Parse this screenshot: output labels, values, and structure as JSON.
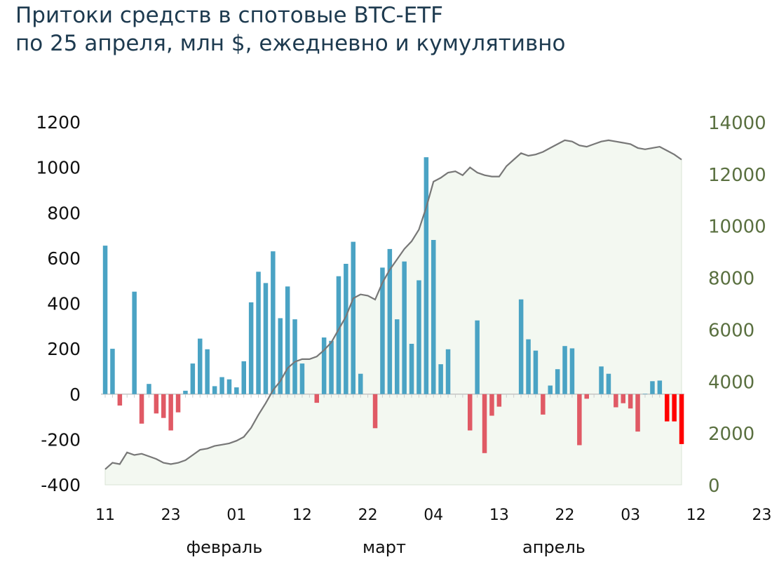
{
  "title_line1": "Притоки средств в спотовые BTC-ETF",
  "title_line2": "по 25 апреля, млн $, ежедневно и кумулятивно",
  "chart_data": {
    "type": "bar",
    "title": "Притоки средств в спотовые BTC-ETF по 25 апреля, млн $, ежедневно и кумулятивно",
    "series": [
      {
        "kind": "bar",
        "axis": "left",
        "values": [
          655,
          200,
          -50,
          0,
          452,
          -130,
          45,
          -85,
          -105,
          -160,
          -80,
          15,
          135,
          245,
          198,
          35,
          75,
          65,
          30,
          145,
          405,
          540,
          490,
          630,
          335,
          475,
          330,
          135,
          0,
          -38,
          250,
          235,
          520,
          575,
          672,
          90,
          0,
          -150,
          558,
          640,
          330,
          585,
          222,
          502,
          1045,
          680,
          132,
          198,
          0,
          0,
          -160,
          325,
          -260,
          -95,
          -55,
          0,
          0,
          418,
          242,
          192,
          -90,
          38,
          110,
          212,
          202,
          -225,
          -20,
          0,
          122,
          90,
          -58,
          -40,
          -63,
          -165,
          2,
          57,
          60,
          -120,
          -120,
          -220
        ]
      },
      {
        "kind": "area",
        "axis": "right",
        "values": [
          600,
          850,
          800,
          1250,
          1150,
          1200,
          1100,
          1000,
          850,
          800,
          850,
          950,
          1150,
          1350,
          1400,
          1500,
          1550,
          1600,
          1700,
          1850,
          2200,
          2700,
          3150,
          3650,
          4000,
          4500,
          4750,
          4850,
          4850,
          4950,
          5200,
          5500,
          6000,
          6500,
          7200,
          7350,
          7300,
          7150,
          7800,
          8300,
          8700,
          9100,
          9400,
          9850,
          10700,
          11700,
          11850,
          12050,
          12100,
          11950,
          12250,
          12050,
          11950,
          11900,
          11900,
          12300,
          12550,
          12800,
          12700,
          12750,
          12850,
          13000,
          13150,
          13300,
          13250,
          13100,
          13050,
          13150,
          13250,
          13300,
          13250,
          13200,
          13150,
          13000,
          12950,
          13000,
          13050,
          12900,
          12750,
          12550
        ]
      }
    ],
    "ylim": [
      -400,
      1200
    ],
    "ylim_right": [
      0,
      14000
    ],
    "yticks": [
      "-400",
      "-200",
      "0",
      "200",
      "400",
      "600",
      "800",
      "1000",
      "1200"
    ],
    "yticks_right": [
      "0",
      "2000",
      "4000",
      "6000",
      "8000",
      "10000",
      "12000",
      "14000"
    ],
    "x_tick_labels": [
      "11",
      "23",
      "01",
      "12",
      "22",
      "04",
      "13",
      "22",
      "03",
      "12",
      "23"
    ],
    "x_tick_index": [
      0,
      9,
      18,
      27,
      36,
      45,
      54,
      63,
      72,
      81,
      90
    ],
    "months": [
      "февраль",
      "март",
      "апрель"
    ],
    "colors": {
      "positive": "#4aa3c4",
      "negative": "#e05a65",
      "latest_negative": "#ff0000",
      "cumulative_line": "#777777",
      "cumulative_fill": "#f3f8f1",
      "right_axis_text": "#5a7040",
      "title": "#1d3a4f"
    },
    "grid": false
  }
}
